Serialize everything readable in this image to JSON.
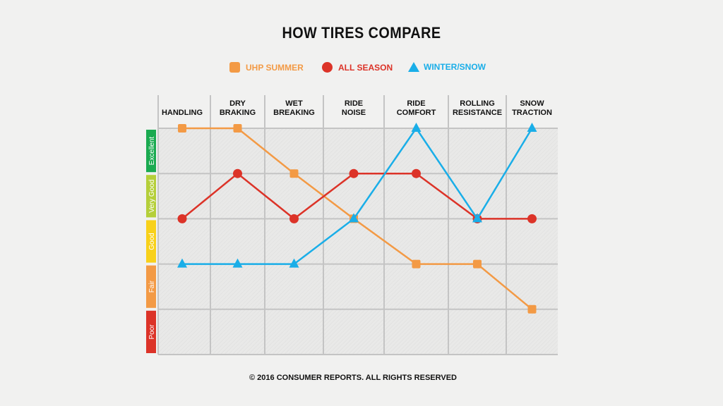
{
  "chart_data": {
    "type": "line",
    "title": "HOW TIRES COMPARE",
    "categories": [
      [
        "HANDLING"
      ],
      [
        "DRY",
        "BRAKING"
      ],
      [
        "WET",
        "BREAKING"
      ],
      [
        "RIDE",
        "NOISE"
      ],
      [
        "RIDE",
        "COMFORT"
      ],
      [
        "ROLLING",
        "RESISTANCE"
      ],
      [
        "SNOW",
        "TRACTION"
      ]
    ],
    "rating_levels": [
      {
        "label": "Excellent",
        "value": 5,
        "color": "#1aaa50"
      },
      {
        "label": "Very Good",
        "value": 4,
        "color": "#b5cf3a"
      },
      {
        "label": "Good",
        "value": 3,
        "color": "#f8d11a"
      },
      {
        "label": "Fair",
        "value": 2,
        "color": "#f39a45"
      },
      {
        "label": "Poor",
        "value": 1,
        "color": "#dc3328"
      }
    ],
    "ylim": [
      0,
      5
    ],
    "grid": true,
    "legend_position": "top",
    "series": [
      {
        "name": "UHP SUMMER",
        "marker": "square",
        "color": "#f39a45",
        "values": [
          5,
          5,
          4,
          3,
          2,
          2,
          1
        ]
      },
      {
        "name": "ALL SEASON",
        "marker": "circle",
        "color": "#dc3328",
        "values": [
          3,
          4,
          3,
          4,
          4,
          3,
          3
        ]
      },
      {
        "name": "WINTER/SNOW",
        "marker": "triangle",
        "color": "#1aaee8",
        "values": [
          2,
          2,
          2,
          3,
          5,
          3,
          5
        ]
      }
    ]
  },
  "footer": "© 2016 CONSUMER REPORTS. ALL RIGHTS RESERVED"
}
